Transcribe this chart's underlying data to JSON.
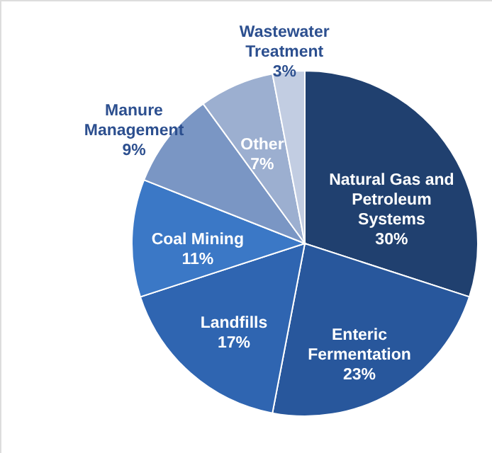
{
  "chart_data": {
    "type": "pie",
    "categories": [
      "Natural Gas and Petroleum Systems",
      "Enteric Fermentation",
      "Landfills",
      "Coal Mining",
      "Manure Management",
      "Other",
      "Wastewater Treatment"
    ],
    "values": [
      30,
      23,
      17,
      11,
      9,
      7,
      3
    ],
    "value_labels": [
      "30%",
      "23%",
      "17%",
      "11%",
      "9%",
      "7%",
      "3%"
    ],
    "colors": [
      "#20406f",
      "#28579c",
      "#2f65b1",
      "#3b78c6",
      "#7a96c4",
      "#9cafd0",
      "#c2cde2"
    ]
  }
}
